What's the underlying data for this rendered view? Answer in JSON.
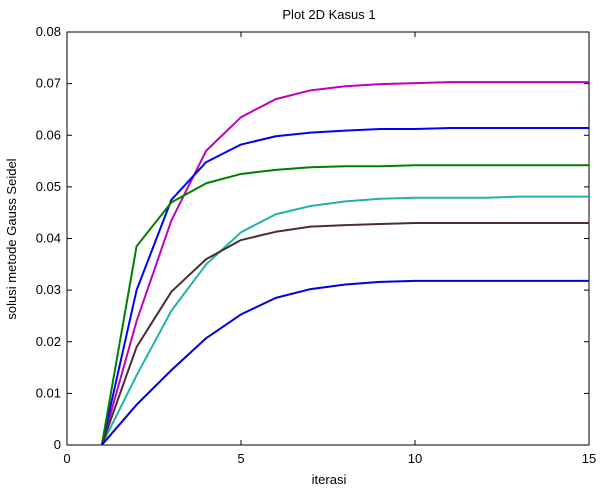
{
  "chart_data": {
    "type": "line",
    "title": "Plot 2D Kasus 1",
    "xlabel": "iterasi",
    "ylabel": "solusi metode Gauss Seidel",
    "xlim": [
      0,
      15
    ],
    "ylim": [
      0,
      0.08
    ],
    "xticks": [
      "0",
      "5",
      "10",
      "15"
    ],
    "yticks": [
      "0",
      "0.01",
      "0.02",
      "0.03",
      "0.04",
      "0.05",
      "0.06",
      "0.07",
      "0.08"
    ],
    "grid": false,
    "x": [
      1,
      2,
      3,
      4,
      5,
      6,
      7,
      8,
      9,
      10,
      11,
      12,
      13,
      14,
      15
    ],
    "series": [
      {
        "color": "#bf00bf",
        "values": [
          0,
          0.024,
          0.0435,
          0.057,
          0.0635,
          0.067,
          0.0687,
          0.0695,
          0.0699,
          0.0701,
          0.0703,
          0.0703,
          0.0703,
          0.0703,
          0.0703
        ]
      },
      {
        "color": "#0000ff",
        "values": [
          0,
          0.03,
          0.0475,
          0.0548,
          0.0582,
          0.0598,
          0.0605,
          0.0609,
          0.0612,
          0.0612,
          0.0614,
          0.0614,
          0.0614,
          0.0614,
          0.0614
        ]
      },
      {
        "color": "#008000",
        "values": [
          0,
          0.0385,
          0.047,
          0.0507,
          0.0525,
          0.0533,
          0.0538,
          0.054,
          0.054,
          0.0542,
          0.0542,
          0.0542,
          0.0542,
          0.0542,
          0.0542
        ]
      },
      {
        "color": "#20b2aa",
        "values": [
          0,
          0.0135,
          0.026,
          0.035,
          0.0412,
          0.0447,
          0.0463,
          0.0472,
          0.0477,
          0.0479,
          0.0479,
          0.0479,
          0.0481,
          0.0481,
          0.0481
        ]
      },
      {
        "color": "#4a3030",
        "values": [
          0,
          0.019,
          0.0297,
          0.036,
          0.0397,
          0.0413,
          0.0423,
          0.0426,
          0.0428,
          0.043,
          0.043,
          0.043,
          0.043,
          0.043,
          0.043
        ]
      },
      {
        "color": "#0000dd",
        "values": [
          0,
          0.0078,
          0.0145,
          0.0207,
          0.0253,
          0.0285,
          0.0302,
          0.0311,
          0.0316,
          0.0318,
          0.0318,
          0.0318,
          0.0318,
          0.0318,
          0.0318
        ]
      }
    ]
  }
}
